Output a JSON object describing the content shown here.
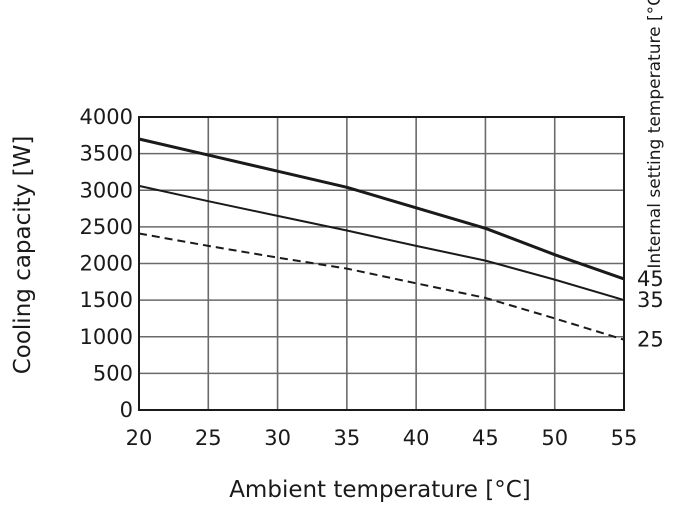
{
  "chart_data": {
    "type": "line",
    "title": "",
    "xlabel": "Ambient temperature [°C]",
    "ylabel": "Cooling capacity [W]",
    "legend_title": "Internal setting temperature [°C]",
    "xlim": [
      20,
      55
    ],
    "ylim": [
      0,
      4000
    ],
    "x_ticks": [
      20,
      25,
      30,
      35,
      40,
      45,
      50,
      55
    ],
    "y_ticks": [
      0,
      500,
      1000,
      1500,
      2000,
      2500,
      3000,
      3500,
      4000
    ],
    "grid": true,
    "legend_placement": "right, at line ends",
    "series": [
      {
        "name": "45",
        "style": "solid",
        "weight": "thick",
        "color": "#1a1a1a",
        "x": [
          20,
          25,
          30,
          35,
          40,
          45,
          50,
          55
        ],
        "y": [
          3700,
          3480,
          3260,
          3040,
          2760,
          2480,
          2120,
          1790
        ]
      },
      {
        "name": "35",
        "style": "solid",
        "weight": "normal",
        "color": "#1a1a1a",
        "x": [
          20,
          25,
          30,
          35,
          40,
          45,
          50,
          55
        ],
        "y": [
          3060,
          2850,
          2650,
          2450,
          2240,
          2040,
          1780,
          1500
        ]
      },
      {
        "name": "25",
        "style": "dashed",
        "weight": "normal",
        "color": "#1a1a1a",
        "x": [
          20,
          25,
          30,
          35,
          40,
          45,
          50,
          55
        ],
        "y": [
          2410,
          2240,
          2080,
          1930,
          1730,
          1530,
          1250,
          960
        ]
      }
    ]
  }
}
